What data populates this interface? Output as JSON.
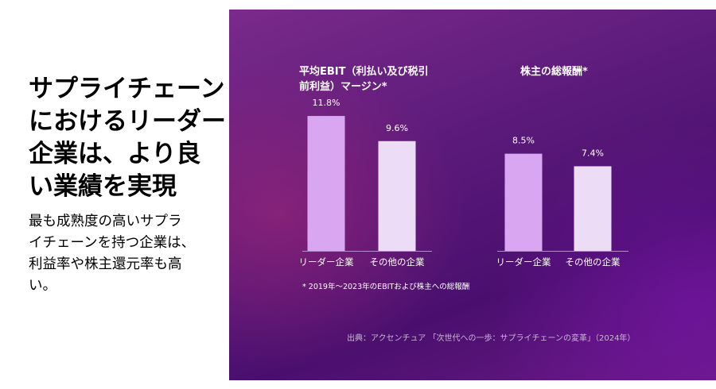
{
  "left": {
    "headline_lines": [
      "サプライチェーン",
      "におけるリーダー",
      "企業は、より良",
      "い業績を実現"
    ],
    "body_lines": [
      "最も成熟度の高いサプラ",
      "イチェーンを持つ企業は、",
      "利益率や株主還元率も高",
      "い。"
    ]
  },
  "colors": {
    "leader": "#d9a6f2",
    "other": "#ecdcf6",
    "panel": "#5a1a7a"
  },
  "chart_data": [
    {
      "type": "bar",
      "title_lines": [
        "平均EBIT（利払い及び税引",
        "前利益）マージン*"
      ],
      "categories": [
        "リーダー企業",
        "その他の企業"
      ],
      "values": [
        11.8,
        9.6
      ],
      "value_labels": [
        "11.8%",
        "9.6%"
      ],
      "unit": "%"
    },
    {
      "type": "bar",
      "title_lines": [
        "株主の総報酬*"
      ],
      "categories": [
        "リーダー企業",
        "その他の企業"
      ],
      "values": [
        8.5,
        7.4
      ],
      "value_labels": [
        "8.5%",
        "7.4%"
      ],
      "unit": "%"
    }
  ],
  "footnote": "* 2019年～2023年のEBITおよび株主への総報酬",
  "source": "出典：アクセンチュア 「次世代への一歩：サプライチェーンの変革」（2024年）"
}
